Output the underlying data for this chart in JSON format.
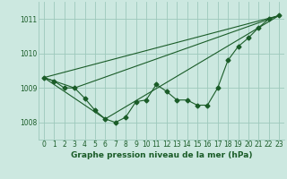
{
  "title": "Graphe pression niveau de la mer (hPa)",
  "background_color": "#cce8e0",
  "grid_color": "#9dc8bc",
  "line_color": "#1a5c28",
  "xlim": [
    -0.5,
    23.5
  ],
  "ylim": [
    1007.5,
    1011.5
  ],
  "yticks": [
    1008,
    1009,
    1010,
    1011
  ],
  "xticks": [
    0,
    1,
    2,
    3,
    4,
    5,
    6,
    7,
    8,
    9,
    10,
    11,
    12,
    13,
    14,
    15,
    16,
    17,
    18,
    19,
    20,
    21,
    22,
    23
  ],
  "series1_x": [
    0,
    1,
    2,
    3,
    4,
    5,
    6,
    7,
    8,
    9,
    10,
    11,
    12,
    13,
    14,
    15,
    16,
    17,
    18,
    19,
    20,
    21,
    22,
    23
  ],
  "series1_y": [
    1009.3,
    1009.2,
    1009.0,
    1009.0,
    1008.7,
    1008.35,
    1008.1,
    1008.0,
    1008.15,
    1008.6,
    1008.65,
    1009.1,
    1008.9,
    1008.65,
    1008.65,
    1008.5,
    1008.5,
    1009.0,
    1009.8,
    1010.2,
    1010.45,
    1010.75,
    1011.0,
    1011.1
  ],
  "series2_x": [
    0,
    23
  ],
  "series2_y": [
    1009.3,
    1011.1
  ],
  "series3_x": [
    0,
    3,
    23
  ],
  "series3_y": [
    1009.3,
    1009.0,
    1011.1
  ],
  "series4_x": [
    0,
    6,
    23
  ],
  "series4_y": [
    1009.3,
    1008.1,
    1011.1
  ],
  "ylabel_fontsize": 5.5,
  "xlabel_fontsize": 5.5,
  "title_fontsize": 6.5
}
